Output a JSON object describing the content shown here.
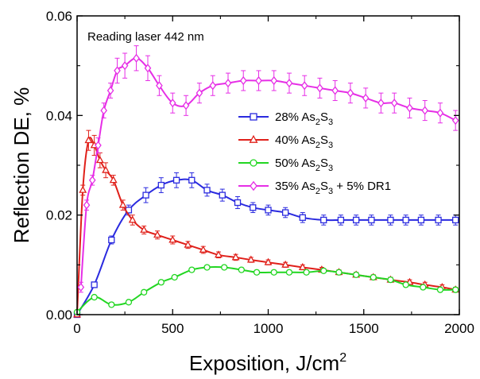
{
  "chart_data": {
    "type": "line",
    "annotation": "Reading laser 442 nm",
    "xlabel": {
      "main": "Exposition, J/cm",
      "sup": "2"
    },
    "ylabel": "Reflection DE, %",
    "xlim": [
      0,
      2000
    ],
    "ylim": [
      0,
      0.06
    ],
    "xticks": [
      "0",
      "500",
      "1000",
      "1500",
      "2000"
    ],
    "yticks": [
      "0.00",
      "0.02",
      "0.04",
      "0.06"
    ],
    "grid": false,
    "legend_position": "middle-right",
    "series": [
      {
        "name": "28% As2S3",
        "label_parts": [
          "28% As",
          "2",
          "S",
          "3",
          ""
        ],
        "color": "#2a2adf",
        "marker": "square",
        "x": [
          0,
          90,
          180,
          270,
          360,
          440,
          520,
          600,
          680,
          760,
          840,
          920,
          1000,
          1090,
          1180,
          1290,
          1380,
          1460,
          1540,
          1640,
          1720,
          1800,
          1890,
          1980
        ],
        "y": [
          0.0,
          0.006,
          0.015,
          0.021,
          0.024,
          0.026,
          0.027,
          0.027,
          0.025,
          0.024,
          0.0225,
          0.0215,
          0.021,
          0.0205,
          0.0195,
          0.019,
          0.019,
          0.019,
          0.019,
          0.019,
          0.019,
          0.019,
          0.019,
          0.019
        ],
        "err": [
          0,
          0.0005,
          0.0008,
          0.001,
          0.0015,
          0.0015,
          0.0015,
          0.0015,
          0.0012,
          0.0012,
          0.0012,
          0.001,
          0.001,
          0.001,
          0.001,
          0.001,
          0.001,
          0.001,
          0.001,
          0.001,
          0.001,
          0.001,
          0.001,
          0.001
        ]
      },
      {
        "name": "40% As2S3",
        "label_parts": [
          "40% As",
          "2",
          "S",
          "3",
          ""
        ],
        "color": "#e0201a",
        "marker": "triangle",
        "x": [
          0,
          30,
          60,
          90,
          120,
          150,
          190,
          240,
          290,
          350,
          420,
          500,
          580,
          660,
          740,
          830,
          910,
          1000,
          1090,
          1180,
          1280,
          1370,
          1460,
          1550,
          1640,
          1740,
          1820,
          1910,
          1980
        ],
        "y": [
          0.0,
          0.025,
          0.035,
          0.034,
          0.031,
          0.029,
          0.027,
          0.022,
          0.019,
          0.017,
          0.016,
          0.015,
          0.014,
          0.013,
          0.012,
          0.0115,
          0.011,
          0.0105,
          0.01,
          0.0095,
          0.009,
          0.0085,
          0.008,
          0.0075,
          0.007,
          0.0065,
          0.006,
          0.0055,
          0.005
        ],
        "err": [
          0,
          0.001,
          0.002,
          0.002,
          0.0015,
          0.0015,
          0.001,
          0.001,
          0.001,
          0.0008,
          0.0008,
          0.0008,
          0.0007,
          0.0007,
          0.0006,
          0.0006,
          0.0005,
          0.0005,
          0.0005,
          0.0005,
          0.0005,
          0.0005,
          0.0005,
          0.0005,
          0.0005,
          0.0005,
          0.0005,
          0.0005,
          0.0005
        ]
      },
      {
        "name": "50% As2S3",
        "label_parts": [
          "50% As",
          "2",
          "S",
          "3",
          ""
        ],
        "color": "#22d622",
        "marker": "circle",
        "x": [
          0,
          90,
          180,
          270,
          350,
          440,
          510,
          600,
          680,
          770,
          860,
          940,
          1030,
          1110,
          1200,
          1290,
          1370,
          1460,
          1550,
          1640,
          1720,
          1810,
          1900,
          1980
        ],
        "y": [
          0.0005,
          0.0035,
          0.002,
          0.0025,
          0.0045,
          0.0065,
          0.0075,
          0.009,
          0.0095,
          0.0095,
          0.009,
          0.0085,
          0.0085,
          0.0085,
          0.0085,
          0.0088,
          0.0085,
          0.008,
          0.0075,
          0.007,
          0.006,
          0.0055,
          0.005,
          0.005
        ],
        "err": [
          0,
          0.0004,
          0.0004,
          0.0004,
          0.0004,
          0.0004,
          0.0004,
          0.0004,
          0.0004,
          0.0004,
          0.0004,
          0.0004,
          0.0004,
          0.0004,
          0.0004,
          0.0004,
          0.0004,
          0.0004,
          0.0004,
          0.0004,
          0.0004,
          0.0004,
          0.0004,
          0.0004
        ]
      },
      {
        "name": "35% As2S3 + 5% DR1",
        "label_parts": [
          "35% As",
          "2",
          "S",
          "3",
          " + 5% DR1"
        ],
        "color": "#e62ee6",
        "marker": "diamond",
        "x": [
          20,
          50,
          80,
          110,
          140,
          175,
          210,
          250,
          310,
          370,
          430,
          500,
          570,
          640,
          710,
          790,
          870,
          950,
          1030,
          1110,
          1190,
          1270,
          1350,
          1430,
          1510,
          1590,
          1660,
          1740,
          1820,
          1900,
          1980
        ],
        "y": [
          0.0055,
          0.022,
          0.027,
          0.034,
          0.041,
          0.045,
          0.049,
          0.05,
          0.0515,
          0.0495,
          0.046,
          0.0425,
          0.042,
          0.0445,
          0.046,
          0.0465,
          0.047,
          0.047,
          0.047,
          0.0465,
          0.046,
          0.0455,
          0.045,
          0.0445,
          0.0435,
          0.0425,
          0.0425,
          0.0415,
          0.041,
          0.0405,
          0.039
        ],
        "err": [
          0.001,
          0.001,
          0.001,
          0.0015,
          0.0015,
          0.0015,
          0.0025,
          0.0025,
          0.0025,
          0.0025,
          0.002,
          0.002,
          0.002,
          0.002,
          0.002,
          0.002,
          0.002,
          0.002,
          0.002,
          0.002,
          0.002,
          0.002,
          0.002,
          0.002,
          0.002,
          0.002,
          0.002,
          0.002,
          0.002,
          0.002,
          0.002
        ]
      }
    ]
  }
}
